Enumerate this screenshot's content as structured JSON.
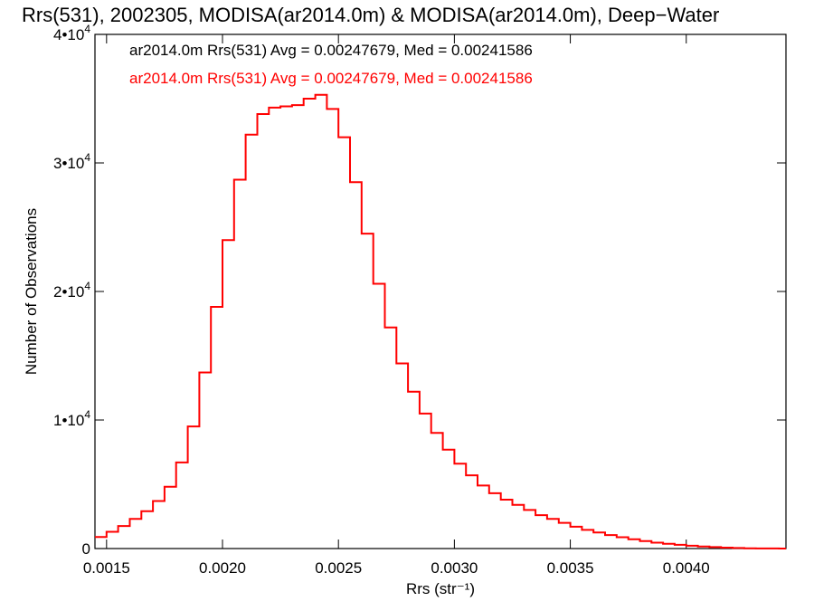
{
  "chart_data": {
    "type": "histogram-step",
    "title": "Rrs(531), 2002305, MODISA(ar2014.0m) & MODISA(ar2014.0m), Deep−Water",
    "xlabel": "Rrs (str⁻¹)",
    "ylabel": "Number of Observations",
    "xlim": [
      0.00145,
      0.00443
    ],
    "ylim": [
      0,
      40000
    ],
    "x_ticks": [
      0.0015,
      0.002,
      0.0025,
      0.003,
      0.0035,
      0.004
    ],
    "x_tick_labels": [
      "0.0015",
      "0.0020",
      "0.0025",
      "0.0030",
      "0.0035",
      "0.0040"
    ],
    "y_ticks": [
      {
        "value": 0,
        "mantissa": "0",
        "exponent": ""
      },
      {
        "value": 10000,
        "mantissa": "1•10",
        "exponent": "4"
      },
      {
        "value": 20000,
        "mantissa": "2•10",
        "exponent": "4"
      },
      {
        "value": 30000,
        "mantissa": "3•10",
        "exponent": "4"
      },
      {
        "value": 40000,
        "mantissa": "4•10",
        "exponent": "4"
      }
    ],
    "legend": [
      {
        "text": "ar2014.0m Rrs(531) Avg = 0.00247679, Med = 0.00241586",
        "color": "#000000"
      },
      {
        "text": "ar2014.0m Rrs(531) Avg = 0.00247679, Med = 0.00241586",
        "color": "#ff0000"
      }
    ],
    "legend_placement": "top-left",
    "grid": false,
    "series": [
      {
        "color": "#ff0000",
        "points": [
          [
            0.00145,
            900
          ],
          [
            0.0015,
            1300
          ],
          [
            0.00155,
            1750
          ],
          [
            0.0016,
            2300
          ],
          [
            0.00165,
            2900
          ],
          [
            0.0017,
            3700
          ],
          [
            0.00175,
            4800
          ],
          [
            0.0018,
            6700
          ],
          [
            0.00185,
            9500
          ],
          [
            0.0019,
            13700
          ],
          [
            0.00195,
            18800
          ],
          [
            0.002,
            24000
          ],
          [
            0.00205,
            28700
          ],
          [
            0.0021,
            32200
          ],
          [
            0.00215,
            33800
          ],
          [
            0.0022,
            34300
          ],
          [
            0.00225,
            34400
          ],
          [
            0.0023,
            34500
          ],
          [
            0.00235,
            35000
          ],
          [
            0.0024,
            35300
          ],
          [
            0.00245,
            34200
          ],
          [
            0.0025,
            32000
          ],
          [
            0.00255,
            28500
          ],
          [
            0.0026,
            24500
          ],
          [
            0.00265,
            20600
          ],
          [
            0.0027,
            17200
          ],
          [
            0.00275,
            14400
          ],
          [
            0.0028,
            12200
          ],
          [
            0.00285,
            10500
          ],
          [
            0.0029,
            9000
          ],
          [
            0.00295,
            7700
          ],
          [
            0.003,
            6600
          ],
          [
            0.00305,
            5700
          ],
          [
            0.0031,
            4900
          ],
          [
            0.00315,
            4300
          ],
          [
            0.0032,
            3800
          ],
          [
            0.00325,
            3400
          ],
          [
            0.0033,
            3000
          ],
          [
            0.00335,
            2600
          ],
          [
            0.0034,
            2300
          ],
          [
            0.00345,
            2000
          ],
          [
            0.0035,
            1700
          ],
          [
            0.00355,
            1450
          ],
          [
            0.0036,
            1250
          ],
          [
            0.00365,
            1050
          ],
          [
            0.0037,
            880
          ],
          [
            0.00375,
            720
          ],
          [
            0.0038,
            580
          ],
          [
            0.00385,
            460
          ],
          [
            0.0039,
            370
          ],
          [
            0.00395,
            290
          ],
          [
            0.004,
            220
          ],
          [
            0.00405,
            160
          ],
          [
            0.0041,
            110
          ],
          [
            0.00415,
            70
          ],
          [
            0.0042,
            40
          ],
          [
            0.00425,
            20
          ],
          [
            0.0043,
            10
          ],
          [
            0.00435,
            5
          ],
          [
            0.0044,
            2
          ]
        ]
      }
    ]
  }
}
